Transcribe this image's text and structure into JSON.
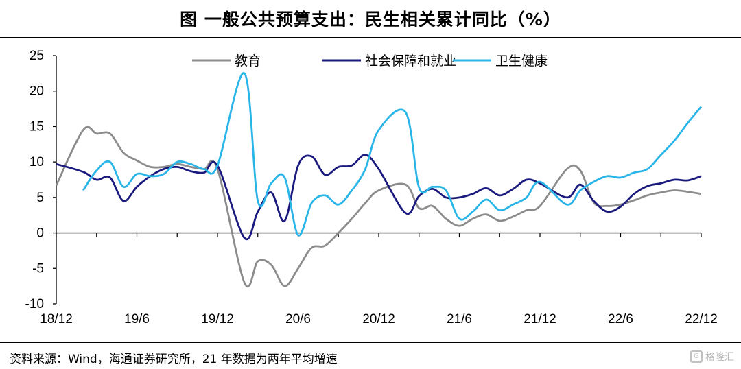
{
  "title": "图 一般公共预算支出：民生相关累计同比（%）",
  "source": "资料来源：Wind，海通证券研究所，21 年数据为两年平均增速",
  "watermark": "格隆汇",
  "colors": {
    "edu": "#8c8c8c",
    "social": "#1a1a7e",
    "health": "#29b5e8"
  },
  "chart_data": {
    "type": "line",
    "title": "图 一般公共预算支出：民生相关累计同比（%）",
    "xlabel": "",
    "ylabel": "",
    "ylim": [
      -10,
      25
    ],
    "yticks": [
      -10,
      -5,
      0,
      5,
      10,
      15,
      20,
      25
    ],
    "x_start_month": "2018-12",
    "x_tick_labels": [
      "18/12",
      "19/6",
      "19/12",
      "20/6",
      "20/12",
      "21/6",
      "21/12",
      "22/6",
      "22/12"
    ],
    "legend_position": "top",
    "grid": false,
    "series": [
      {
        "name": "教育",
        "color": "#8c8c8c",
        "x": [
          "18/12",
          "19/2",
          "19/3",
          "19/4",
          "19/5",
          "19/6",
          "19/7",
          "19/8",
          "19/9",
          "19/10",
          "19/11",
          "19/12",
          "20/2",
          "20/3",
          "20/4",
          "20/5",
          "20/6",
          "20/7",
          "20/8",
          "20/9",
          "20/10",
          "20/11",
          "20/12",
          "21/2",
          "21/3",
          "21/4",
          "21/5",
          "21/6",
          "21/7",
          "21/8",
          "21/9",
          "21/10",
          "21/11",
          "21/12",
          "22/2",
          "22/3",
          "22/4",
          "22/5",
          "22/6",
          "22/7",
          "22/8",
          "22/9",
          "22/10",
          "22/11",
          "22/12"
        ],
        "values": [
          6.7,
          14.5,
          14.0,
          14.0,
          11.3,
          10.2,
          9.3,
          9.3,
          9.7,
          9.3,
          9.0,
          9.0,
          -7.0,
          -4.0,
          -4.5,
          -7.5,
          -5.0,
          -2.1,
          -1.8,
          0.0,
          2.0,
          4.2,
          6.0,
          6.8,
          3.5,
          3.8,
          2.0,
          1.0,
          2.0,
          2.6,
          1.7,
          2.3,
          3.2,
          3.8,
          9.0,
          8.8,
          4.3,
          3.8,
          4.0,
          4.6,
          5.3,
          5.7,
          6.0,
          5.8,
          5.5
        ]
      },
      {
        "name": "社会保障和就业",
        "color": "#1a1a7e",
        "x": [
          "18/12",
          "19/2",
          "19/3",
          "19/4",
          "19/5",
          "19/6",
          "19/7",
          "19/8",
          "19/9",
          "19/10",
          "19/11",
          "19/12",
          "20/2",
          "20/3",
          "20/4",
          "20/5",
          "20/6",
          "20/7",
          "20/8",
          "20/9",
          "20/10",
          "20/11",
          "20/12",
          "21/2",
          "21/3",
          "21/4",
          "21/5",
          "21/6",
          "21/7",
          "21/8",
          "21/9",
          "21/10",
          "21/11",
          "21/12",
          "22/2",
          "22/3",
          "22/4",
          "22/5",
          "22/6",
          "22/7",
          "22/8",
          "22/9",
          "22/10",
          "22/11",
          "22/12"
        ],
        "values": [
          9.7,
          8.6,
          7.5,
          7.8,
          4.5,
          6.5,
          8.0,
          9.0,
          9.3,
          8.7,
          8.5,
          9.5,
          -0.7,
          3.0,
          5.7,
          1.7,
          9.5,
          10.8,
          8.2,
          9.3,
          9.5,
          11.0,
          9.0,
          2.8,
          5.2,
          6.2,
          5.0,
          5.0,
          5.5,
          6.3,
          5.3,
          6.2,
          7.5,
          7.0,
          5.0,
          6.8,
          4.5,
          3.0,
          3.7,
          5.5,
          6.6,
          7.0,
          7.5,
          7.4,
          8.0
        ]
      },
      {
        "name": "卫生健康",
        "color": "#29b5e8",
        "x": [
          "19/2",
          "19/3",
          "19/4",
          "19/5",
          "19/6",
          "19/7",
          "19/8",
          "19/9",
          "19/10",
          "19/11",
          "19/12",
          "20/2",
          "20/3",
          "20/4",
          "20/5",
          "20/6",
          "20/7",
          "20/8",
          "20/9",
          "20/10",
          "20/11",
          "20/12",
          "21/2",
          "21/3",
          "21/4",
          "21/5",
          "21/6",
          "21/7",
          "21/8",
          "21/9",
          "21/10",
          "21/11",
          "21/12",
          "22/2",
          "22/3",
          "22/4",
          "22/5",
          "22/6",
          "22/7",
          "22/8",
          "22/9",
          "22/10",
          "22/11",
          "22/12"
        ],
        "values": [
          6.0,
          8.8,
          10.0,
          6.5,
          8.3,
          8.0,
          8.3,
          10.0,
          9.7,
          9.0,
          9.5,
          22.5,
          4.5,
          7.0,
          7.8,
          -0.3,
          4.2,
          5.3,
          4.0,
          6.0,
          9.0,
          14.5,
          17.0,
          6.4,
          6.5,
          6.0,
          2.0,
          3.0,
          4.7,
          3.2,
          4.0,
          5.0,
          7.2,
          4.0,
          6.0,
          7.2,
          8.0,
          7.8,
          8.5,
          9.0,
          11.0,
          13.0,
          15.5,
          17.8
        ]
      }
    ]
  }
}
